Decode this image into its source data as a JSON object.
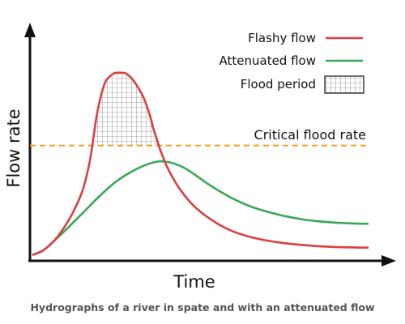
{
  "chart_data": {
    "type": "line",
    "xlabel": "Time",
    "ylabel": "Flow rate",
    "xlim": [
      0,
      100
    ],
    "ylim": [
      0,
      100
    ],
    "threshold": {
      "label": "Critical flood rate",
      "value": 54,
      "color": "#f0a020"
    },
    "flood_region_label": "Flood period",
    "series": [
      {
        "name": "Flashy flow",
        "color": "#d94040",
        "x": [
          0,
          3,
          6,
          9,
          12,
          15,
          17,
          18,
          19,
          20,
          21,
          22,
          24,
          25,
          27,
          28,
          30,
          33,
          35,
          36,
          37,
          38,
          39,
          40,
          42,
          44,
          47,
          50,
          53,
          56,
          60,
          65,
          70,
          75,
          80,
          85,
          90,
          95,
          100
        ],
        "y": [
          2,
          4,
          8,
          14,
          22,
          33,
          46,
          56,
          67,
          75,
          81,
          85,
          88,
          88.5,
          88.5,
          88,
          85,
          77,
          68,
          62,
          57,
          52,
          48,
          44,
          38,
          33,
          27,
          22.5,
          19,
          16,
          13,
          10.5,
          8.8,
          7.6,
          6.8,
          6.2,
          5.8,
          5.6,
          5.5
        ]
      },
      {
        "name": "Attenuated flow",
        "color": "#3aa855",
        "x": [
          0,
          3,
          6,
          10,
          15,
          20,
          25,
          30,
          35,
          38,
          40,
          42,
          45,
          48,
          52,
          56,
          60,
          65,
          70,
          75,
          80,
          85,
          90,
          95,
          100
        ],
        "y": [
          2,
          4,
          8,
          14,
          22,
          30,
          37,
          42,
          45.5,
          46.5,
          46.2,
          45.5,
          43.5,
          40.5,
          36,
          32,
          28.5,
          25,
          22.5,
          20.5,
          19,
          18,
          17.4,
          17,
          16.8
        ]
      }
    ],
    "legend": {
      "placement": "top-right"
    },
    "grid": false
  },
  "caption": "Hydrographs of a river in spate and with an attenuated flow"
}
